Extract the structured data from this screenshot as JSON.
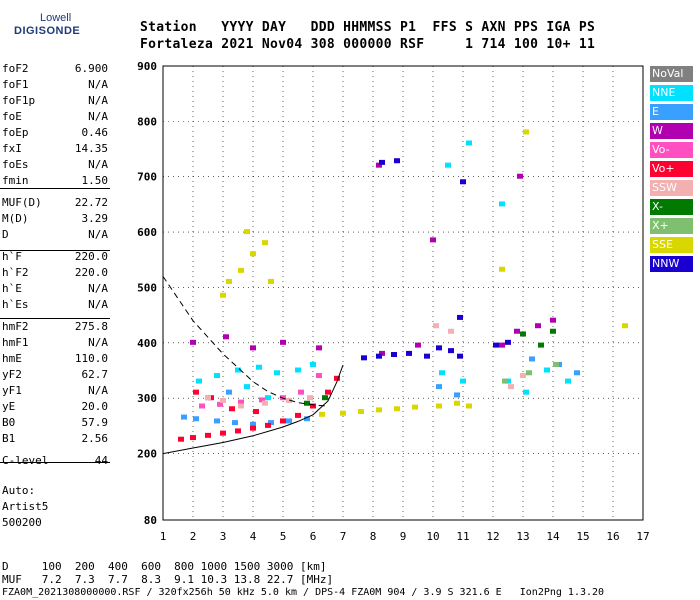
{
  "logo": {
    "line1": "Lowell",
    "line2": "DIGISONDE"
  },
  "header": {
    "line1": "Station   YYYY DAY   DDD HHMMSS P1  FFS S AXN PPS IGA PS",
    "line2": "Fortaleza 2021 Nov04 308 000000 RSF     1 714 100 10+ 11"
  },
  "params": [
    {
      "name": "foF2",
      "value": "6.900"
    },
    {
      "name": "foF1",
      "value": "N/A"
    },
    {
      "name": "foF1p",
      "value": "N/A"
    },
    {
      "name": "foE",
      "value": "N/A"
    },
    {
      "name": "foEp",
      "value": "0.46"
    },
    {
      "name": "fxI",
      "value": "14.35"
    },
    {
      "name": "foEs",
      "value": "N/A"
    },
    {
      "name": "fmin",
      "value": "1.50"
    },
    {
      "name": "MUF(D)",
      "value": "22.72"
    },
    {
      "name": "M(D)",
      "value": "3.29"
    },
    {
      "name": "D",
      "value": "N/A"
    },
    {
      "name": "h`F",
      "value": "220.0"
    },
    {
      "name": "h`F2",
      "value": "220.0"
    },
    {
      "name": "h`E",
      "value": "N/A"
    },
    {
      "name": "h`Es",
      "value": "N/A"
    },
    {
      "name": "hmF2",
      "value": "275.8"
    },
    {
      "name": "hmF1",
      "value": "N/A"
    },
    {
      "name": "hmE",
      "value": "110.0"
    },
    {
      "name": "yF2",
      "value": "62.7"
    },
    {
      "name": "yF1",
      "value": "N/A"
    },
    {
      "name": "yE",
      "value": "20.0"
    },
    {
      "name": "B0",
      "value": "57.9"
    },
    {
      "name": "B1",
      "value": "2.56"
    },
    {
      "name": "C-level",
      "value": "44"
    }
  ],
  "auto": {
    "line1": "Auto:",
    "line2": "Artist5",
    "line3": "500200"
  },
  "legend": [
    {
      "label": "NoVal",
      "color": "#808080"
    },
    {
      "label": "NNE",
      "color": "#00e0ff"
    },
    {
      "label": "E",
      "color": "#3aa0ff"
    },
    {
      "label": "W",
      "color": "#b000b0"
    },
    {
      "label": "Vo-",
      "color": "#ff4fc0"
    },
    {
      "label": "Vo+",
      "color": "#ff0030"
    },
    {
      "label": "SSW",
      "color": "#f4b0b0"
    },
    {
      "label": "X-",
      "color": "#007a00"
    },
    {
      "label": "X+",
      "color": "#7fc070"
    },
    {
      "label": "SSE",
      "color": "#d8d800"
    },
    {
      "label": "NNW",
      "color": "#1a00d0"
    }
  ],
  "footer": {
    "d_row": "D     100  200  400  600  800 1000 1500 3000 [km]",
    "muf_row": "MUF   7.2  7.3  7.7  8.3  9.1 10.3 13.8 22.7 [MHz]",
    "file_row": "FZA0M_2021308000000.RSF / 320fx256h 50 kHz 5.0 km / DPS-4 FZA0M 904 / 3.9 S 321.6 E   Ion2Png 1.3.20"
  },
  "chart_data": {
    "type": "scatter",
    "x_ticks": [
      "1",
      "2",
      "3",
      "4",
      "5",
      "6",
      "7",
      "8",
      "9",
      "10",
      "11",
      "12",
      "13",
      "14",
      "15",
      "16",
      "17"
    ],
    "y_ticks": [
      "80",
      "200",
      "300",
      "400",
      "500",
      "600",
      "700",
      "800",
      "900"
    ],
    "xlim": [
      1,
      17
    ],
    "ylim": [
      80,
      900
    ],
    "grid": true,
    "legend_position": "right",
    "series": [
      {
        "name": "NNE",
        "points": [
          [
            2.2,
            330
          ],
          [
            2.8,
            340
          ],
          [
            3.5,
            350
          ],
          [
            4.2,
            355
          ],
          [
            4.8,
            345
          ],
          [
            5.5,
            350
          ],
          [
            6.0,
            360
          ],
          [
            10.3,
            345
          ],
          [
            11.0,
            330
          ],
          [
            12.5,
            330
          ],
          [
            13.1,
            310
          ],
          [
            13.8,
            350
          ],
          [
            14.5,
            330
          ],
          [
            10.5,
            720
          ],
          [
            11.2,
            760
          ],
          [
            12.3,
            650
          ],
          [
            3.8,
            320
          ],
          [
            4.5,
            300
          ]
        ]
      },
      {
        "name": "E",
        "points": [
          [
            1.7,
            265
          ],
          [
            2.1,
            262
          ],
          [
            2.8,
            258
          ],
          [
            3.4,
            255
          ],
          [
            4.0,
            252
          ],
          [
            4.6,
            255
          ],
          [
            5.2,
            258
          ],
          [
            5.8,
            262
          ],
          [
            2.5,
            300
          ],
          [
            3.2,
            310
          ],
          [
            10.2,
            320
          ],
          [
            10.8,
            305
          ],
          [
            13.3,
            370
          ],
          [
            14.2,
            360
          ],
          [
            14.8,
            345
          ]
        ]
      },
      {
        "name": "W",
        "points": [
          [
            2.0,
            400
          ],
          [
            3.1,
            410
          ],
          [
            4.0,
            390
          ],
          [
            5.0,
            400
          ],
          [
            6.2,
            390
          ],
          [
            8.3,
            380
          ],
          [
            9.5,
            395
          ],
          [
            10.0,
            585
          ],
          [
            12.3,
            395
          ],
          [
            12.8,
            420
          ],
          [
            13.5,
            430
          ],
          [
            14.0,
            440
          ],
          [
            12.9,
            700
          ],
          [
            8.2,
            720
          ]
        ]
      },
      {
        "name": "Vo-",
        "points": [
          [
            2.3,
            285
          ],
          [
            2.9,
            288
          ],
          [
            3.6,
            292
          ],
          [
            4.3,
            296
          ],
          [
            5.0,
            300
          ],
          [
            5.6,
            310
          ],
          [
            6.2,
            340
          ]
        ]
      },
      {
        "name": "Vo+",
        "points": [
          [
            1.6,
            225
          ],
          [
            2.0,
            228
          ],
          [
            2.5,
            232
          ],
          [
            3.0,
            236
          ],
          [
            3.5,
            240
          ],
          [
            4.0,
            245
          ],
          [
            4.5,
            250
          ],
          [
            5.0,
            258
          ],
          [
            5.5,
            268
          ],
          [
            6.0,
            285
          ],
          [
            6.5,
            310
          ],
          [
            6.8,
            335
          ],
          [
            2.1,
            310
          ],
          [
            2.6,
            300
          ],
          [
            3.3,
            280
          ],
          [
            4.1,
            275
          ]
        ]
      },
      {
        "name": "SSW",
        "points": [
          [
            2.5,
            300
          ],
          [
            3.0,
            295
          ],
          [
            3.6,
            285
          ],
          [
            4.4,
            290
          ],
          [
            5.2,
            295
          ],
          [
            5.9,
            300
          ],
          [
            10.1,
            430
          ],
          [
            10.6,
            420
          ],
          [
            12.6,
            320
          ],
          [
            13.0,
            340
          ]
        ]
      },
      {
        "name": "X-",
        "points": [
          [
            5.8,
            290
          ],
          [
            6.4,
            300
          ],
          [
            13.0,
            415
          ],
          [
            13.6,
            395
          ],
          [
            14.0,
            420
          ]
        ]
      },
      {
        "name": "X+",
        "points": [
          [
            12.4,
            330
          ],
          [
            13.2,
            345
          ],
          [
            14.1,
            360
          ]
        ]
      },
      {
        "name": "SSE",
        "points": [
          [
            3.2,
            510
          ],
          [
            3.6,
            530
          ],
          [
            4.0,
            560
          ],
          [
            4.4,
            580
          ],
          [
            3.0,
            485
          ],
          [
            4.6,
            510
          ],
          [
            7.0,
            272
          ],
          [
            7.6,
            275
          ],
          [
            8.2,
            278
          ],
          [
            8.8,
            280
          ],
          [
            9.4,
            283
          ],
          [
            10.2,
            285
          ],
          [
            10.8,
            290
          ],
          [
            11.2,
            285
          ],
          [
            6.3,
            270
          ],
          [
            12.3,
            532
          ],
          [
            13.1,
            780
          ],
          [
            16.4,
            430
          ],
          [
            3.8,
            600
          ]
        ]
      },
      {
        "name": "NNW",
        "points": [
          [
            7.7,
            372
          ],
          [
            8.2,
            375
          ],
          [
            8.7,
            378
          ],
          [
            9.2,
            380
          ],
          [
            9.8,
            375
          ],
          [
            10.2,
            390
          ],
          [
            10.6,
            385
          ],
          [
            10.9,
            375
          ],
          [
            12.1,
            395
          ],
          [
            12.5,
            400
          ],
          [
            8.3,
            725
          ],
          [
            8.8,
            728
          ],
          [
            10.9,
            445
          ],
          [
            11.0,
            690
          ]
        ]
      }
    ],
    "curves": {
      "dashed": [
        [
          1.0,
          520
        ],
        [
          1.5,
          480
        ],
        [
          2.0,
          440
        ],
        [
          2.5,
          410
        ],
        [
          3.0,
          380
        ],
        [
          3.5,
          355
        ],
        [
          4.0,
          330
        ],
        [
          4.5,
          312
        ],
        [
          5.0,
          300
        ],
        [
          5.5,
          292
        ],
        [
          6.0,
          288
        ],
        [
          6.4,
          286
        ]
      ],
      "solid": [
        [
          1.0,
          200
        ],
        [
          2.0,
          210
        ],
        [
          3.0,
          220
        ],
        [
          4.0,
          232
        ],
        [
          5.0,
          248
        ],
        [
          5.5,
          258
        ],
        [
          6.0,
          270
        ],
        [
          6.5,
          295
        ],
        [
          6.8,
          330
        ],
        [
          7.0,
          360
        ]
      ]
    }
  }
}
